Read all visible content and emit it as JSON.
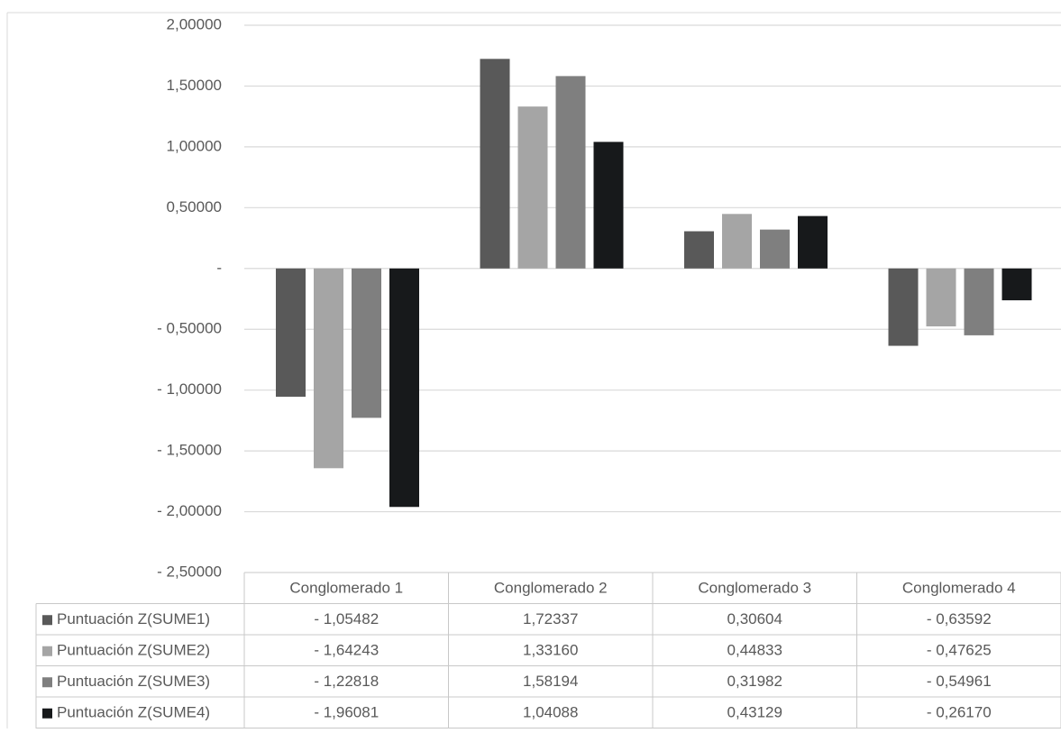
{
  "chart_data": {
    "type": "bar",
    "title": "",
    "xlabel": "",
    "ylabel": "",
    "ylim": [
      -2.5,
      2.0
    ],
    "yticks": [
      2.0,
      1.5,
      1.0,
      0.5,
      0,
      -0.5,
      -1.0,
      -1.5,
      -2.0,
      -2.5
    ],
    "ytick_labels": [
      "2,00000",
      "1,50000",
      "1,00000",
      "0,50000",
      "-",
      "- 0,50000",
      "- 1,00000",
      "- 1,50000",
      "- 2,00000",
      "- 2,50000"
    ],
    "grid": true,
    "legend": "data-table",
    "categories": [
      "Conglomerado 1",
      "Conglomerado 2",
      "Conglomerado 3",
      "Conglomerado 4"
    ],
    "series": [
      {
        "name": "Puntuación Z(SUME1)",
        "color": "#595959",
        "values": [
          -1.05482,
          1.72337,
          0.30604,
          -0.63592
        ],
        "labels": [
          "- 1,05482",
          "1,72337",
          "0,30604",
          "- 0,63592"
        ]
      },
      {
        "name": "Puntuación Z(SUME2)",
        "color": "#a5a5a5",
        "values": [
          -1.64243,
          1.3316,
          0.44833,
          -0.47625
        ],
        "labels": [
          "- 1,64243",
          "1,33160",
          "0,44833",
          "- 0,47625"
        ]
      },
      {
        "name": "Puntuación Z(SUME3)",
        "color": "#7f7f7f",
        "values": [
          -1.22818,
          1.58194,
          0.31982,
          -0.54961
        ],
        "labels": [
          "- 1,22818",
          "1,58194",
          "0,31982",
          "- 0,54961"
        ]
      },
      {
        "name": "Puntuación Z(SUME4)",
        "color": "#17191b",
        "values": [
          -1.96081,
          1.04088,
          0.43129,
          -0.2617
        ],
        "labels": [
          "- 1,96081",
          "1,04088",
          "0,43129",
          "- 0,26170"
        ]
      }
    ]
  }
}
